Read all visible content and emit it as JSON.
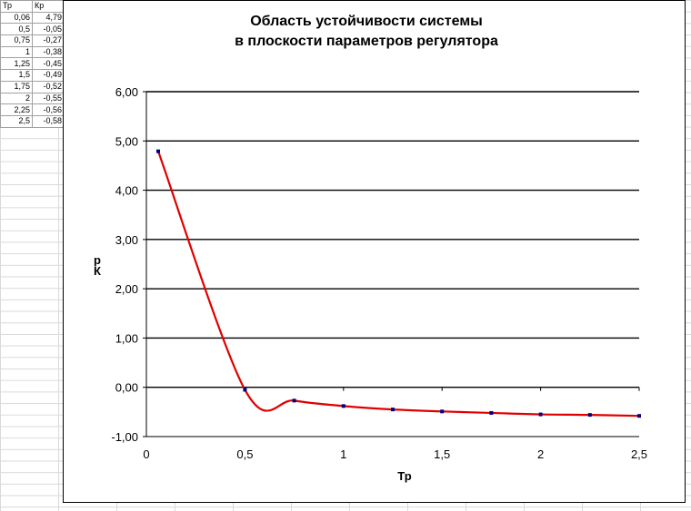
{
  "table": {
    "headers": [
      "Тр",
      "Кр"
    ],
    "rows": [
      [
        "0,06",
        "4,79"
      ],
      [
        "0,5",
        "-0,05"
      ],
      [
        "0,75",
        "-0,27"
      ],
      [
        "1",
        "-0,38"
      ],
      [
        "1,25",
        "-0,45"
      ],
      [
        "1,5",
        "-0,49"
      ],
      [
        "1,75",
        "-0,52"
      ],
      [
        "2",
        "-0,55"
      ],
      [
        "2,25",
        "-0,56"
      ],
      [
        "2,5",
        "-0,58"
      ]
    ]
  },
  "chart_data": {
    "type": "line",
    "title_lines": [
      "Область устойчивости системы",
      "в плоскости параметров регулятора"
    ],
    "xlabel": "Тр",
    "ylabel_top": "р",
    "ylabel_bottom": "К",
    "x": [
      0.06,
      0.5,
      0.75,
      1,
      1.25,
      1.5,
      1.75,
      2,
      2.25,
      2.5
    ],
    "y": [
      4.79,
      -0.05,
      -0.27,
      -0.38,
      -0.45,
      -0.49,
      -0.52,
      -0.55,
      -0.56,
      -0.58
    ],
    "xlim": [
      0,
      2.5
    ],
    "ylim": [
      -1,
      6
    ],
    "xticks": [
      "0",
      "0,5",
      "1",
      "1,5",
      "2",
      "2,5"
    ],
    "yticks": [
      "-1,00",
      "0,00",
      "1,00",
      "2,00",
      "3,00",
      "4,00",
      "5,00",
      "6,00"
    ],
    "grid": "horizontal",
    "line_color": "#e00000",
    "marker_color": "#000080"
  }
}
